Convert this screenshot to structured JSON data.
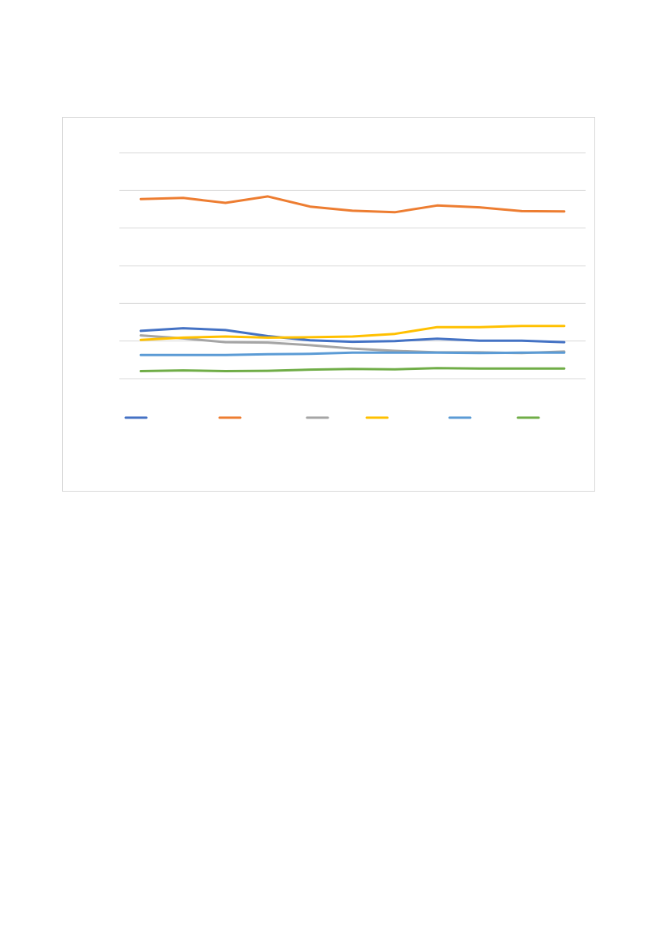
{
  "chart_data": {
    "type": "line",
    "title": "",
    "xlabel": "",
    "ylabel": "",
    "x": [
      1,
      2,
      3,
      4,
      5,
      6,
      7,
      8,
      9,
      10,
      11
    ],
    "ylim": [
      0,
      6
    ],
    "y_gridlines": [
      0,
      1,
      2,
      3,
      4,
      5,
      6
    ],
    "grid": true,
    "legend_placement": "bottom",
    "series": [
      {
        "color": "#4472c4",
        "values": [
          1.27,
          1.34,
          1.29,
          1.13,
          1.02,
          0.98,
          1.0,
          1.06,
          1.01,
          1.01,
          0.97
        ]
      },
      {
        "color": "#ed7d31",
        "values": [
          4.77,
          4.8,
          4.67,
          4.84,
          4.57,
          4.46,
          4.42,
          4.6,
          4.55,
          4.45,
          4.44
        ]
      },
      {
        "color": "#a5a5a5",
        "values": [
          1.15,
          1.07,
          0.97,
          0.96,
          0.89,
          0.8,
          0.74,
          0.7,
          0.7,
          0.68,
          0.72
        ]
      },
      {
        "color": "#ffc000",
        "values": [
          1.03,
          1.09,
          1.12,
          1.09,
          1.1,
          1.12,
          1.19,
          1.37,
          1.37,
          1.4,
          1.4
        ]
      },
      {
        "color": "#5b9bd5",
        "values": [
          0.63,
          0.63,
          0.63,
          0.65,
          0.66,
          0.69,
          0.69,
          0.69,
          0.68,
          0.69,
          0.69
        ]
      },
      {
        "color": "#70ad47",
        "values": [
          0.2,
          0.22,
          0.2,
          0.21,
          0.24,
          0.26,
          0.25,
          0.28,
          0.27,
          0.27,
          0.27
        ]
      }
    ]
  }
}
